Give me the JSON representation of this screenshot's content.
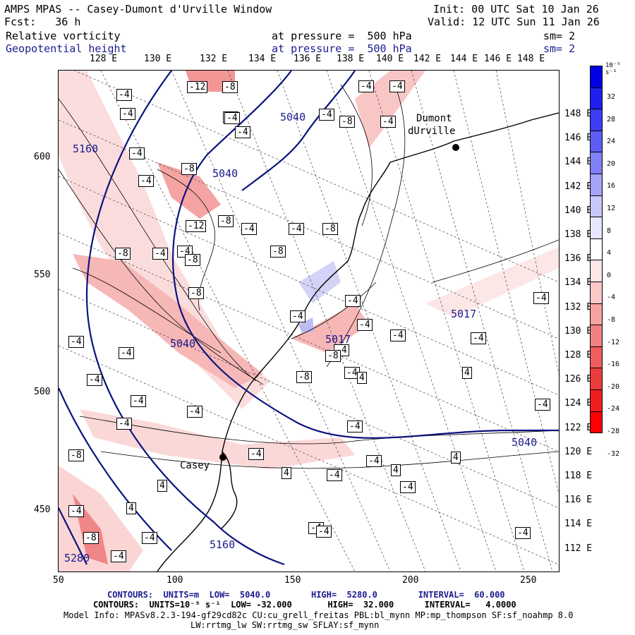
{
  "header": {
    "model_title": "AMPS MPAS -- Casey-Dumont d'Urville Window",
    "init": "Init: 00 UTC Sat 10 Jan 26",
    "forecast": "Fcst:   36 h",
    "valid": "Valid: 12 UTC Sun 11 Jan 26",
    "field1_name": "Relative vorticity",
    "field1_level": "at pressure =  500 hPa",
    "field1_sm": "sm= 2",
    "field2_name": "Geopotential height",
    "field2_level": "at pressure =  500 hPa",
    "field2_sm": "sm= 2"
  },
  "map": {
    "top_longitudes": [
      "128 E",
      "130 E",
      "132 E",
      "134 E",
      "136 E",
      "138 E",
      "140 E",
      "142 E",
      "144 E",
      "146 E",
      "148 E"
    ],
    "left_y_ticks": [
      "600",
      "550",
      "500",
      "450"
    ],
    "bottom_x_ticks": [
      "50",
      "100",
      "150",
      "200",
      "250"
    ],
    "right_longitudes": [
      "148 E",
      "146 E",
      "144 E",
      "142 E",
      "140 E",
      "138 E",
      "136 E",
      "134 E",
      "132 E",
      "130 E",
      "128 E",
      "126 E",
      "124 E",
      "122 E",
      "120 E",
      "118 E",
      "116 E",
      "114 E",
      "112 E"
    ],
    "stations": {
      "dumont": "Dumont",
      "dumont2": "dUrville",
      "casey": "Casey"
    },
    "geopotential_labels": [
      "5160",
      "5040",
      "5040",
      "5040",
      "5017",
      "5040",
      "5017",
      "5160",
      "5280"
    ],
    "vorticity_boxes": [
      "-4",
      "-12",
      "-8",
      "-4",
      "-4",
      "-4",
      "-4",
      "-4",
      "-8",
      "-4",
      "-4",
      "-8",
      "-4",
      "-4",
      "-4",
      "-8",
      "-4",
      "-12",
      "-4",
      "-8",
      "-4",
      "-8",
      "-8",
      "-8",
      "-4",
      "-4",
      "-4",
      "-4",
      "-8",
      "-4",
      "-4",
      "-8",
      "-4",
      "-4",
      "-4",
      "-4",
      "-4",
      "-4",
      "-4",
      "4",
      "-4",
      "-4",
      "-4",
      "4",
      "-4",
      "-8",
      "-4",
      "4",
      "-8",
      "-4",
      "-4",
      "4",
      "4",
      "-4",
      "-4",
      "-8",
      "-4",
      "-4",
      "-4",
      "-4",
      "4",
      "-4",
      "4"
    ]
  },
  "colorbar": {
    "unit": "10⁻⁵ s⁻¹",
    "ticks": [
      "32",
      "28",
      "24",
      "20",
      "16",
      "12",
      "8",
      "4",
      "0",
      "-4",
      "-8",
      "-12",
      "-16",
      "-20",
      "-24",
      "-28",
      "-32"
    ],
    "colors": [
      "#0000e6",
      "#1f1ff0",
      "#3d3df5",
      "#5e5ef7",
      "#8080f8",
      "#a3a3fa",
      "#c7c7fc",
      "#e6e6fe",
      "#ffffff",
      "#fde6e6",
      "#fbc8c8",
      "#f7a3a3",
      "#f38080",
      "#ef5e5e",
      "#ec3d3d",
      "#f01f1f",
      "#ff0000"
    ]
  },
  "footer": {
    "line1": "CONTOURS:  UNITS=m  LOW=  5040.0        HIGH=  5280.0        INTERVAL=  60.000",
    "line2": "CONTOURS:  UNITS=10⁻⁵ s⁻¹  LOW= -32.000       HIGH=  32.000      INTERVAL=   4.0000",
    "line3": "Model Info: MPASv8.2.3-194-gf29cd82c CU:cu_grell_freitas PBL:bl_mynn MP:mp_thompson SF:sf_noahmp 8.0",
    "line4": "LW:rrtmg_lw SW:rrtmg_sw SFLAY:sf_mynn"
  }
}
